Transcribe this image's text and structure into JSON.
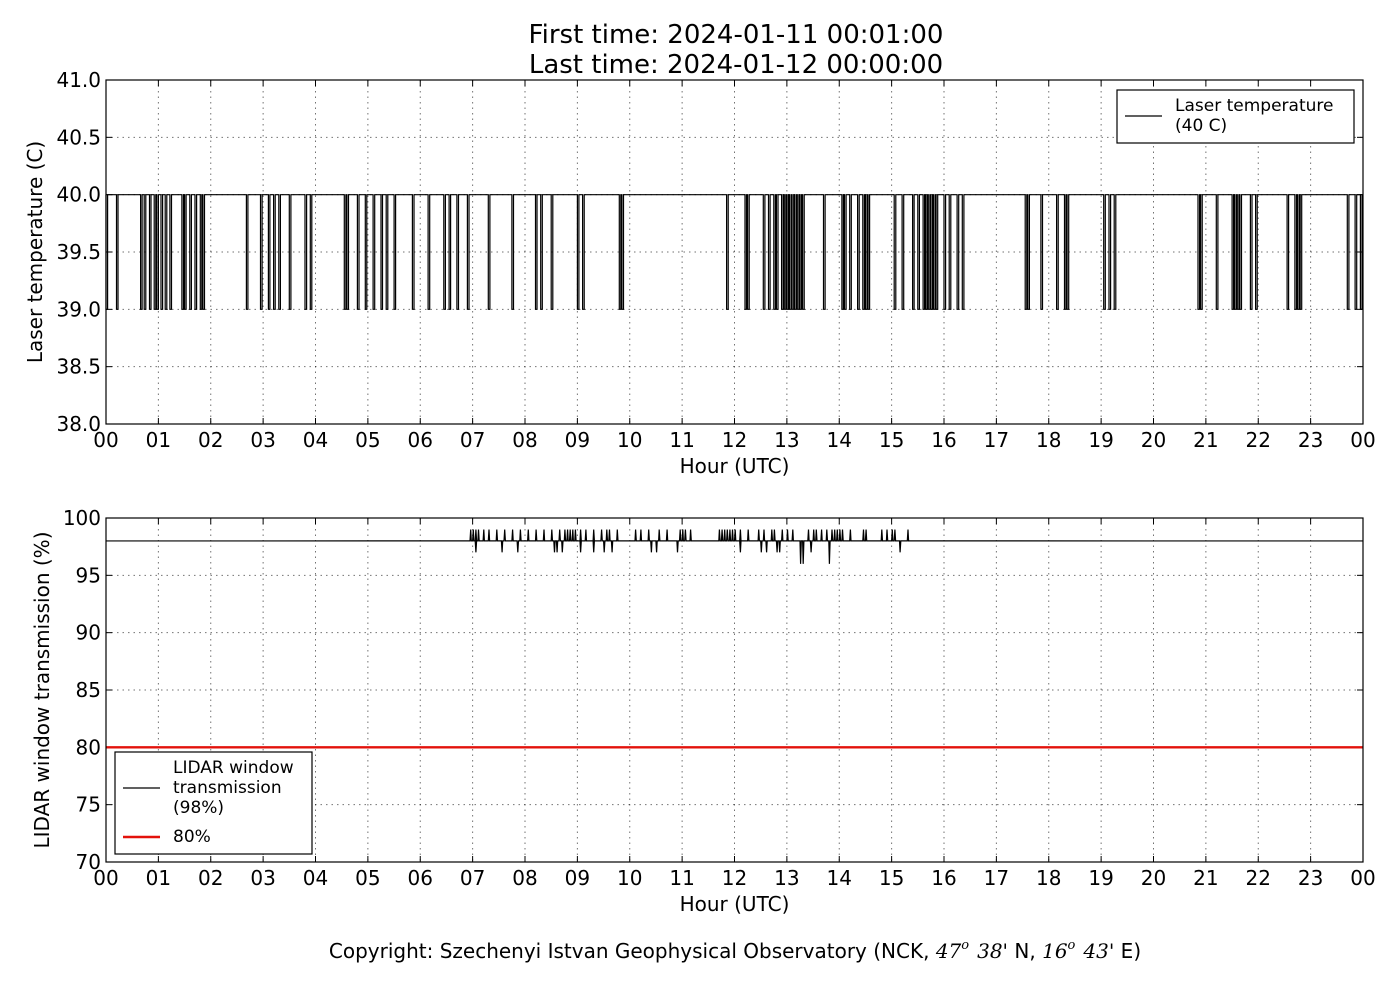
{
  "chart_data": [
    {
      "type": "line",
      "title_lines": [
        "First time: 2024-01-11 00:01:00",
        "Last time: 2024-01-12 00:00:00"
      ],
      "xlabel": "Hour (UTC)",
      "ylabel": "Laser temperature (C)",
      "xlim": [
        0,
        24
      ],
      "ylim": [
        38.0,
        41.0
      ],
      "x_tick_labels": [
        "00",
        "01",
        "02",
        "03",
        "04",
        "05",
        "06",
        "07",
        "08",
        "09",
        "10",
        "11",
        "12",
        "13",
        "14",
        "15",
        "16",
        "17",
        "18",
        "19",
        "20",
        "21",
        "22",
        "23",
        "00"
      ],
      "y_ticks": [
        38.0,
        38.5,
        39.0,
        39.5,
        40.0,
        40.5,
        41.0
      ],
      "y_tick_labels": [
        "38.0",
        "38.5",
        "39.0",
        "39.5",
        "40.0",
        "40.5",
        "41.0"
      ],
      "grid": true,
      "legend_position": "top-right",
      "series": [
        {
          "name": "Laser temperature\n(40 C)",
          "color": "#000000",
          "baseline": 40.0,
          "dip_value": 39.0,
          "dip_hours": [
            0.0,
            0.2,
            0.66,
            0.73,
            0.83,
            0.92,
            0.97,
            1.05,
            1.13,
            1.22,
            1.45,
            1.5,
            1.6,
            1.7,
            1.8,
            1.85,
            2.68,
            2.95,
            3.1,
            3.2,
            3.3,
            3.5,
            3.8,
            3.9,
            4.55,
            4.6,
            4.8,
            4.95,
            5.1,
            5.25,
            5.35,
            5.5,
            5.85,
            6.15,
            6.45,
            6.55,
            6.7,
            6.9,
            7.3,
            7.75,
            8.2,
            8.3,
            8.5,
            9.0,
            9.1,
            9.8,
            9.85,
            11.85,
            12.2,
            12.25,
            12.55,
            12.65,
            12.75,
            12.8,
            12.9,
            12.95,
            13.0,
            13.05,
            13.1,
            13.15,
            13.2,
            13.25,
            13.3,
            13.7,
            14.05,
            14.1,
            14.2,
            14.35,
            14.45,
            14.5,
            14.55,
            15.05,
            15.2,
            15.4,
            15.5,
            15.6,
            15.65,
            15.7,
            15.75,
            15.8,
            15.85,
            16.0,
            16.1,
            16.25,
            16.35,
            17.55,
            17.6,
            17.85,
            18.15,
            18.3,
            18.35,
            19.05,
            19.15,
            19.25,
            20.85,
            20.9,
            21.2,
            21.5,
            21.55,
            21.6,
            21.65,
            21.85,
            21.95,
            22.55,
            22.7,
            22.75,
            22.8,
            23.7,
            23.85,
            23.95
          ]
        }
      ]
    },
    {
      "type": "line",
      "xlabel": "Hour (UTC)",
      "ylabel": "LIDAR window transmission (%)",
      "xlim": [
        0,
        24
      ],
      "ylim": [
        70,
        100
      ],
      "x_tick_labels": [
        "00",
        "01",
        "02",
        "03",
        "04",
        "05",
        "06",
        "07",
        "08",
        "09",
        "10",
        "11",
        "12",
        "13",
        "14",
        "15",
        "16",
        "17",
        "18",
        "19",
        "20",
        "21",
        "22",
        "23",
        "00"
      ],
      "y_ticks": [
        70,
        75,
        80,
        85,
        90,
        95,
        100
      ],
      "y_tick_labels": [
        "70",
        "75",
        "80",
        "85",
        "90",
        "95",
        "100"
      ],
      "grid": true,
      "legend_position": "bottom-left",
      "series": [
        {
          "name": "LIDAR window\ntransmission\n(98%)",
          "color": "#000000",
          "baseline": 98,
          "noise_range_hours": [
            6.95,
            15.3
          ],
          "up_hours": [
            6.95,
            7.0,
            7.05,
            7.1,
            7.2,
            7.3,
            7.45,
            7.6,
            7.75,
            7.9,
            8.05,
            8.2,
            8.35,
            8.5,
            8.65,
            8.75,
            8.8,
            8.85,
            8.9,
            8.95,
            9.05,
            9.15,
            9.3,
            9.45,
            9.55,
            9.6,
            9.75,
            10.1,
            10.2,
            10.35,
            10.55,
            10.7,
            10.95,
            11.0,
            11.05,
            11.15,
            11.7,
            11.75,
            11.8,
            11.85,
            11.9,
            11.95,
            12.0,
            12.1,
            12.25,
            12.45,
            12.55,
            12.7,
            12.75,
            12.9,
            13.0,
            13.1,
            13.4,
            13.5,
            13.55,
            13.65,
            13.75,
            13.85,
            13.9,
            13.95,
            14.0,
            14.05,
            14.2,
            14.45,
            14.5,
            14.8,
            14.9,
            15.0,
            15.05,
            15.3
          ],
          "down_hours": [
            [
              7.05,
              97
            ],
            [
              7.55,
              97
            ],
            [
              7.85,
              97
            ],
            [
              8.55,
              97
            ],
            [
              8.6,
              97
            ],
            [
              8.7,
              97
            ],
            [
              9.05,
              97
            ],
            [
              9.3,
              97
            ],
            [
              9.5,
              97
            ],
            [
              9.65,
              97
            ],
            [
              10.4,
              97
            ],
            [
              10.5,
              97
            ],
            [
              10.9,
              97
            ],
            [
              12.1,
              97
            ],
            [
              12.5,
              97
            ],
            [
              12.6,
              97
            ],
            [
              12.8,
              97
            ],
            [
              12.85,
              97
            ],
            [
              13.25,
              96
            ],
            [
              13.3,
              96
            ],
            [
              13.45,
              97
            ],
            [
              13.8,
              96
            ],
            [
              15.15,
              97
            ]
          ]
        },
        {
          "name": "80%",
          "color": "#e3120b",
          "value": 80
        }
      ]
    }
  ],
  "footer": {
    "copyright_prefix": "Copyright: Szechenyi Istvan Geophysical Observatory (NCK, ",
    "lat_deg": "47",
    "deg_symbol": "o",
    "lat_min": "38'",
    "lat_suffix": " N, ",
    "lon_deg": "16",
    "lon_min": "43'",
    "lon_suffix": " E)"
  }
}
